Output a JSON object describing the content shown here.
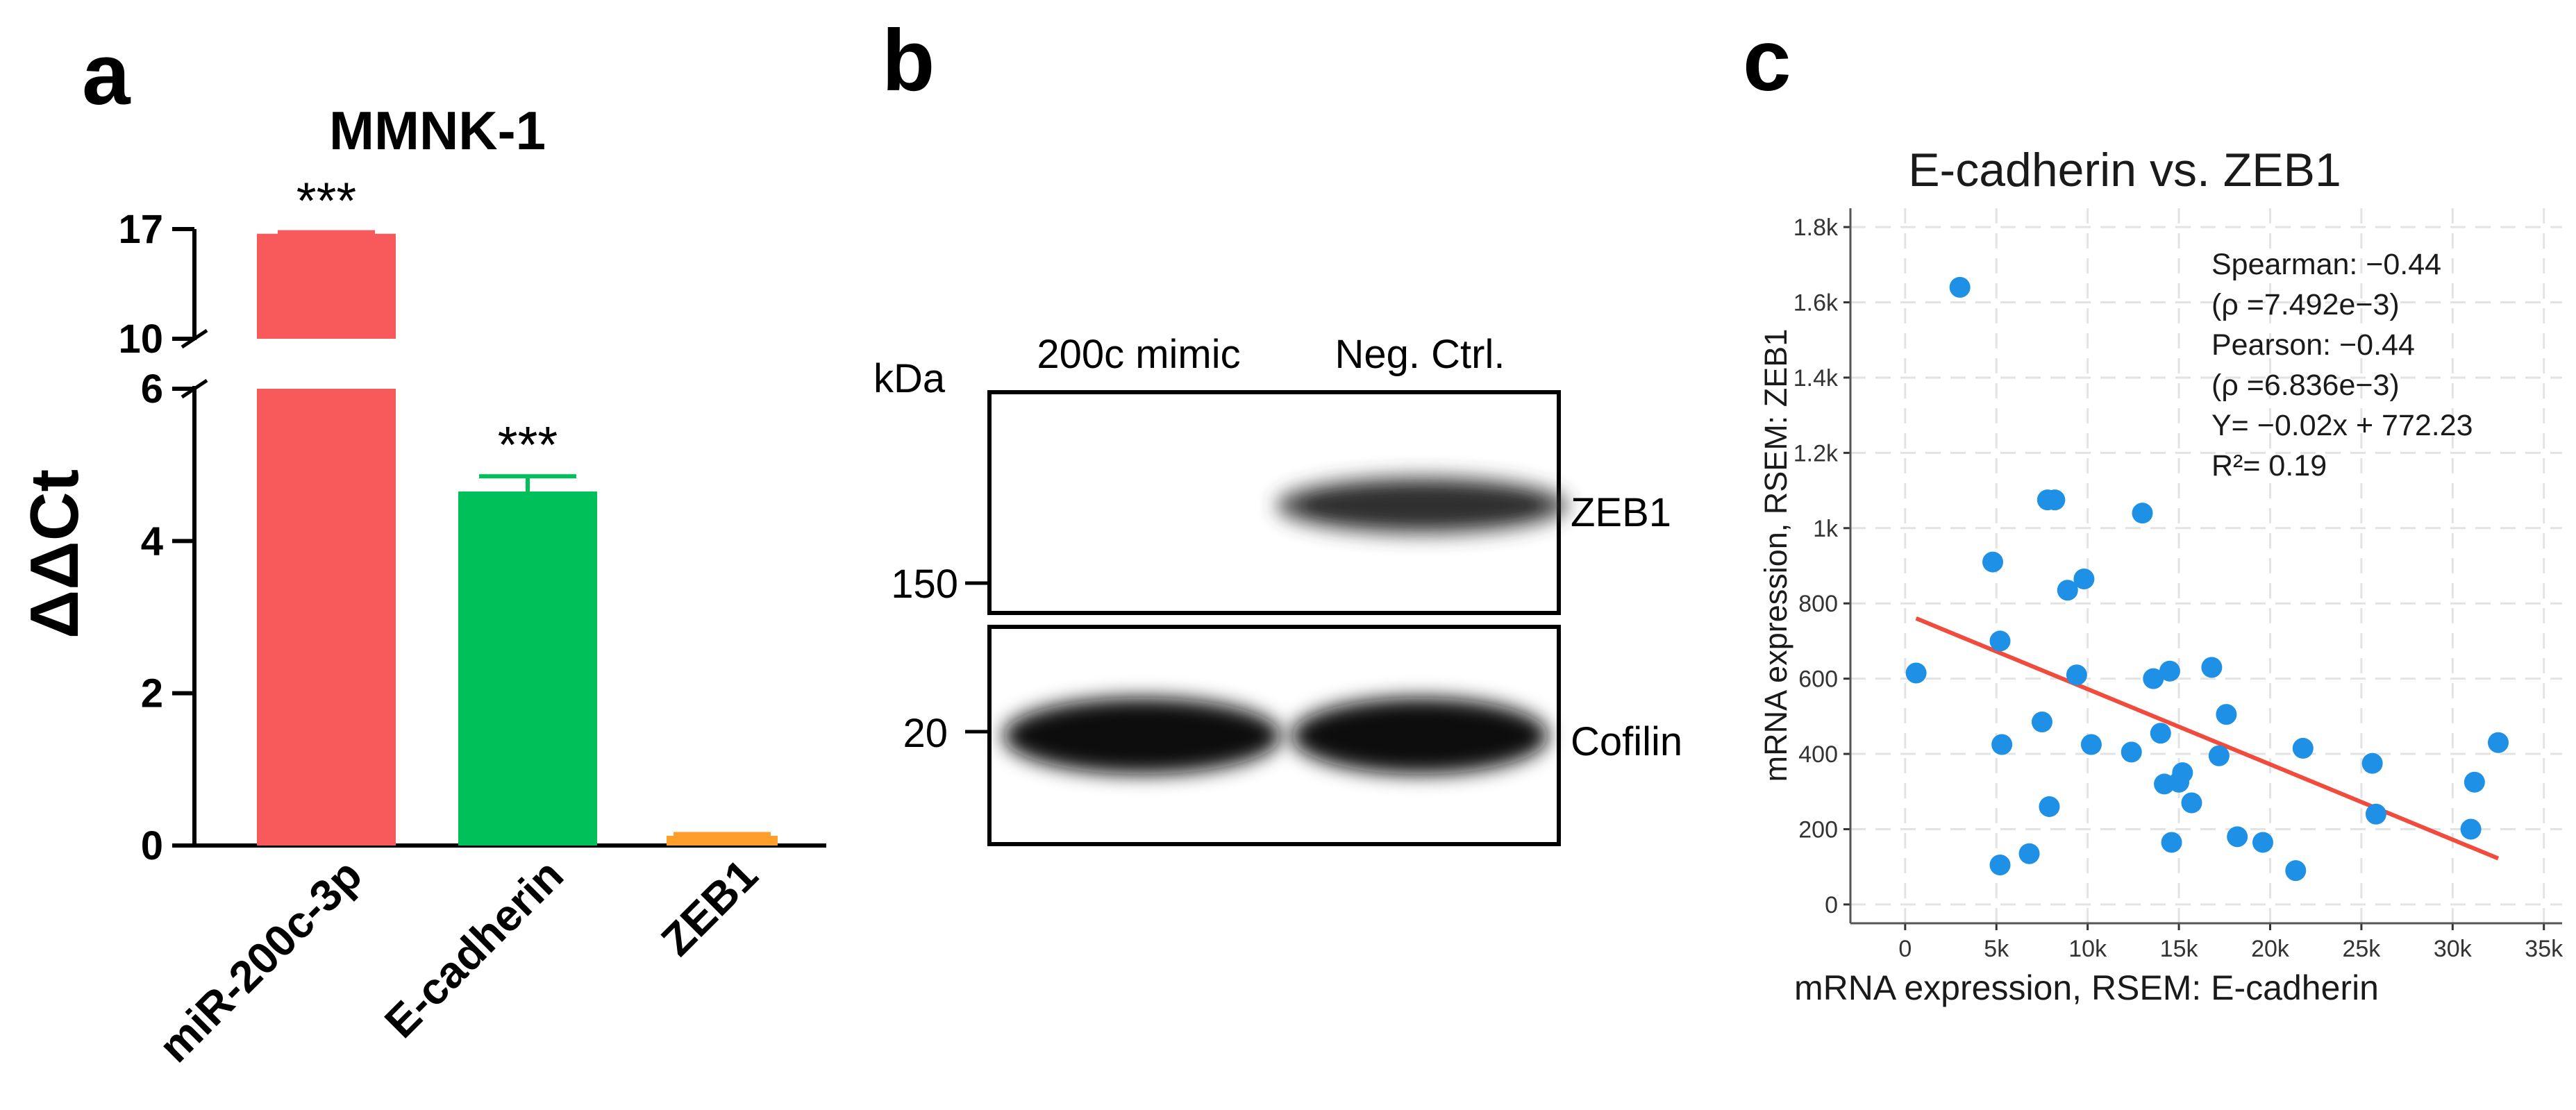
{
  "panel_a": {
    "letter": "a",
    "title": "MMNK-1",
    "ylabel": "ΔΔCt",
    "yticks_low": [
      "0",
      "2",
      "4",
      "6"
    ],
    "yticks_high": [
      "10",
      "17"
    ],
    "categories": [
      "miR-200c-3p",
      "E-cadherin",
      "ZEB1"
    ],
    "significance": [
      "***",
      "***",
      ""
    ],
    "colors": [
      "#f8595a",
      "#00c05a",
      "#ff9e2a"
    ]
  },
  "panel_b": {
    "letter": "b",
    "kda_label": "kDa",
    "lanes": [
      "200c mimic",
      "Neg. Ctrl."
    ],
    "markers": [
      "150",
      "20"
    ],
    "bands": [
      "ZEB1",
      "Cofilin"
    ]
  },
  "panel_c": {
    "letter": "c",
    "title": "E-cadherin vs. ZEB1",
    "xlabel": "mRNA expression, RSEM: E-cadherin",
    "ylabel": "mRNA expression, RSEM: ZEB1",
    "xticks": [
      "0",
      "5k",
      "10k",
      "15k",
      "20k",
      "25k",
      "30k",
      "35k"
    ],
    "yticks": [
      "0",
      "200",
      "400",
      "600",
      "800",
      "1k",
      "1.2k",
      "1.4k",
      "1.6k",
      "1.8k"
    ],
    "stats": [
      "Spearman: −0.44",
      "(ρ =7.492e−3)",
      "Pearson: −0.44",
      "(ρ =6.836e−3)",
      "Y= −0.02x + 772.23",
      "R²= 0.19"
    ],
    "point_color": "#1e90e6",
    "line_color": "#f04b3c"
  },
  "chart_data": [
    {
      "type": "bar",
      "title": "MMNK-1",
      "ylabel": "ΔΔCt",
      "categories": [
        "miR-200c-3p",
        "E-cadherin",
        "ZEB1"
      ],
      "values": [
        16.7,
        4.65,
        0.1
      ],
      "errors": [
        0.1,
        0.2,
        0.05
      ],
      "axis_break": [
        6,
        10
      ],
      "ylim": [
        0,
        17
      ]
    },
    {
      "type": "scatter",
      "title": "E-cadherin vs. ZEB1",
      "xlabel": "mRNA expression, RSEM: E-cadherin",
      "ylabel": "mRNA expression, RSEM: ZEB1",
      "xlim": [
        -3000,
        36000
      ],
      "ylim": [
        -50,
        1850
      ],
      "grid": true,
      "x": [
        600,
        3000,
        4800,
        5200,
        5300,
        5200,
        6800,
        7500,
        7900,
        8200,
        7800,
        8900,
        9400,
        9800,
        10200,
        12400,
        13000,
        13600,
        14000,
        14200,
        14500,
        14600,
        15000,
        15200,
        15700,
        16800,
        17200,
        17600,
        18200,
        19600,
        21400,
        21800,
        25600,
        25800,
        31000,
        31200,
        32500
      ],
      "y": [
        615,
        1640,
        910,
        700,
        425,
        105,
        135,
        485,
        260,
        1075,
        1075,
        835,
        610,
        865,
        425,
        405,
        1040,
        600,
        455,
        320,
        620,
        165,
        325,
        350,
        270,
        630,
        395,
        505,
        180,
        165,
        90,
        415,
        375,
        240,
        200,
        325,
        430
      ],
      "fit_line": {
        "slope": -0.02,
        "intercept": 772.23
      }
    }
  ]
}
